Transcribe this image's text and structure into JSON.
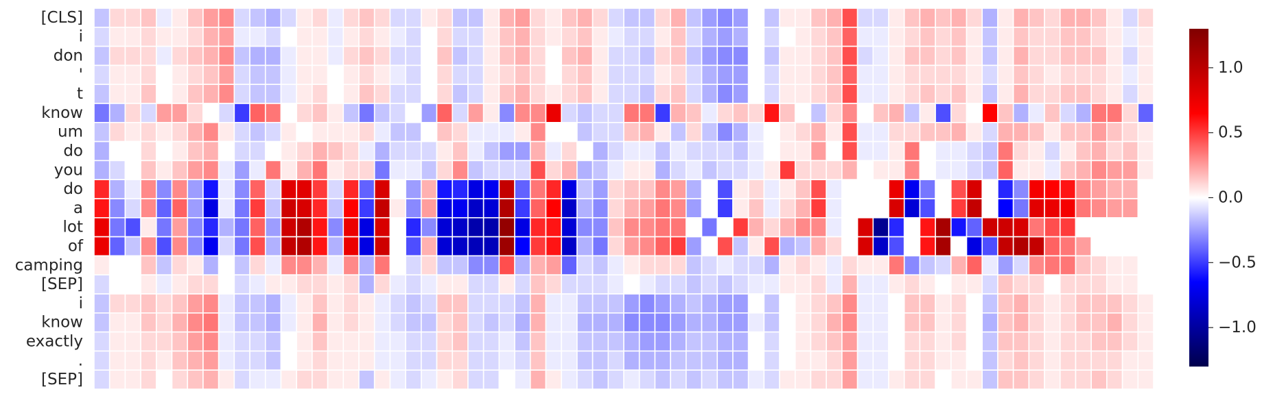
{
  "chart_data": {
    "type": "heatmap",
    "row_labels": [
      "[CLS]",
      "i",
      "don",
      "'",
      "t",
      "know",
      "um",
      "do",
      "you",
      "do",
      "a",
      "lot",
      "of",
      "camping",
      "[SEP]",
      "i",
      "know",
      "exactly",
      ".",
      "[SEP]"
    ],
    "n_columns": 68,
    "colorbar": {
      "min": -1.3,
      "max": 1.3,
      "ticks": [
        -1.0,
        -0.5,
        0.0,
        0.5,
        1.0
      ],
      "tick_labels": [
        "−1.0",
        "−0.5",
        "0.0",
        "0.5",
        "1.0"
      ],
      "colormap": "seismic"
    },
    "values": [
      [
        -0.15,
        0.1,
        0.1,
        0.15,
        -0.05,
        0.05,
        0.15,
        0.25,
        0.3,
        -0.1,
        -0.15,
        -0.2,
        -0.1,
        0.05,
        0.1,
        -0.05,
        0.1,
        0.15,
        0.1,
        -0.1,
        -0.1,
        0.05,
        0.1,
        -0.15,
        -0.15,
        0.05,
        0.2,
        0.25,
        0.1,
        0.05,
        0.15,
        0.2,
        0.1,
        -0.1,
        -0.15,
        -0.15,
        0.1,
        0.2,
        -0.15,
        -0.25,
        -0.3,
        -0.25,
        0.0,
        -0.15,
        0.05,
        0.05,
        0.15,
        0.2,
        0.45,
        -0.1,
        -0.1,
        0.05,
        0.15,
        0.2,
        0.15,
        0.2,
        0.1,
        -0.2,
        0.05,
        0.2,
        0.15,
        0.1,
        0.2,
        0.2,
        0.15,
        0.05,
        -0.1,
        0.1
      ],
      [
        -0.1,
        0.05,
        0.05,
        0.1,
        0.05,
        0.05,
        0.1,
        0.2,
        0.25,
        -0.05,
        -0.05,
        -0.1,
        0.0,
        0.05,
        0.05,
        -0.05,
        0.05,
        0.1,
        0.05,
        -0.05,
        -0.1,
        0.0,
        0.1,
        -0.1,
        -0.1,
        0.05,
        0.15,
        0.2,
        0.1,
        0.05,
        0.1,
        0.15,
        0.05,
        -0.05,
        -0.1,
        -0.1,
        0.05,
        0.15,
        -0.1,
        -0.2,
        -0.25,
        -0.2,
        0.0,
        -0.1,
        0.0,
        0.05,
        0.1,
        0.15,
        0.4,
        -0.05,
        -0.05,
        0.05,
        0.1,
        0.15,
        0.1,
        0.15,
        0.05,
        -0.15,
        0.05,
        0.15,
        0.1,
        0.1,
        0.15,
        0.15,
        0.1,
        0.05,
        -0.05,
        0.05
      ],
      [
        -0.15,
        0.1,
        0.1,
        0.1,
        -0.05,
        0.1,
        0.15,
        0.2,
        0.3,
        -0.15,
        -0.2,
        -0.2,
        -0.05,
        0.05,
        0.05,
        -0.05,
        0.1,
        0.15,
        0.1,
        -0.1,
        -0.1,
        0.0,
        0.15,
        -0.15,
        -0.1,
        0.05,
        0.15,
        0.2,
        0.1,
        0.0,
        0.15,
        0.2,
        0.05,
        -0.1,
        -0.1,
        -0.15,
        0.1,
        0.15,
        -0.15,
        -0.25,
        -0.3,
        -0.3,
        0.0,
        -0.15,
        0.05,
        0.05,
        0.1,
        0.15,
        0.45,
        -0.1,
        -0.05,
        0.05,
        0.15,
        0.15,
        0.1,
        0.15,
        0.05,
        -0.15,
        0.05,
        0.2,
        0.1,
        0.1,
        0.15,
        0.15,
        0.15,
        0.05,
        -0.1,
        0.05
      ],
      [
        -0.1,
        0.05,
        0.05,
        0.1,
        0.0,
        0.05,
        0.1,
        0.15,
        0.25,
        -0.1,
        -0.15,
        -0.15,
        -0.05,
        0.05,
        0.05,
        0.0,
        0.05,
        0.1,
        0.05,
        -0.05,
        -0.1,
        0.0,
        0.1,
        -0.1,
        -0.1,
        0.05,
        0.1,
        0.15,
        0.1,
        0.0,
        0.1,
        0.15,
        0.05,
        -0.1,
        -0.1,
        -0.1,
        0.05,
        0.1,
        -0.1,
        -0.2,
        -0.25,
        -0.25,
        0.0,
        -0.1,
        0.05,
        0.05,
        0.1,
        0.15,
        0.4,
        -0.05,
        -0.05,
        0.05,
        0.1,
        0.1,
        0.1,
        0.1,
        0.05,
        -0.1,
        0.05,
        0.15,
        0.1,
        0.05,
        0.1,
        0.1,
        0.1,
        0.05,
        -0.05,
        0.05
      ],
      [
        -0.15,
        0.05,
        0.05,
        0.15,
        0.0,
        0.05,
        0.15,
        0.2,
        0.3,
        -0.1,
        -0.15,
        -0.15,
        -0.05,
        0.05,
        0.1,
        0.0,
        0.05,
        0.15,
        0.1,
        -0.1,
        -0.1,
        0.0,
        0.1,
        -0.15,
        -0.1,
        0.05,
        0.15,
        0.2,
        0.1,
        0.05,
        0.1,
        0.15,
        0.05,
        -0.1,
        -0.1,
        -0.15,
        0.1,
        0.15,
        -0.1,
        -0.2,
        -0.3,
        -0.25,
        0.0,
        -0.1,
        0.05,
        0.05,
        0.1,
        0.15,
        0.45,
        -0.05,
        -0.05,
        0.05,
        0.1,
        0.15,
        0.1,
        0.15,
        0.05,
        -0.15,
        0.05,
        0.2,
        0.1,
        0.1,
        0.15,
        0.15,
        0.1,
        0.05,
        -0.1,
        0.05
      ],
      [
        -0.35,
        -0.2,
        0.1,
        -0.1,
        0.25,
        0.25,
        0.1,
        0.0,
        -0.1,
        -0.5,
        0.4,
        0.35,
        0.0,
        0.1,
        0.15,
        0.05,
        -0.15,
        -0.35,
        -0.15,
        -0.1,
        0.0,
        -0.25,
        0.4,
        -0.1,
        0.25,
        0.05,
        -0.3,
        0.3,
        0.3,
        0.75,
        -0.1,
        -0.15,
        -0.1,
        -0.1,
        0.35,
        0.35,
        -0.5,
        0.2,
        0.15,
        -0.05,
        0.1,
        0.15,
        0.1,
        0.6,
        0.15,
        0.0,
        -0.15,
        0.1,
        0.3,
        0.0,
        0.15,
        0.2,
        -0.15,
        0.05,
        -0.45,
        0.1,
        0.0,
        0.65,
        0.15,
        -0.2,
        -0.05,
        0.15,
        -0.1,
        -0.2,
        0.35,
        0.35,
        0.1,
        -0.4
      ],
      [
        -0.15,
        0.1,
        0.05,
        0.1,
        0.05,
        0.1,
        0.2,
        0.3,
        0.05,
        -0.1,
        -0.15,
        -0.1,
        0.05,
        0.0,
        0.05,
        0.05,
        0.05,
        0.1,
        -0.05,
        -0.15,
        -0.15,
        0.0,
        0.15,
        0.1,
        -0.05,
        -0.05,
        -0.05,
        0.05,
        0.3,
        0.0,
        0.0,
        -0.15,
        -0.1,
        -0.1,
        0.15,
        0.2,
        0.05,
        -0.15,
        0.1,
        -0.15,
        -0.3,
        -0.2,
        -0.05,
        0.0,
        0.05,
        0.1,
        0.2,
        0.05,
        0.45,
        -0.05,
        -0.05,
        0.1,
        0.1,
        0.15,
        0.15,
        0.2,
        0.05,
        -0.1,
        0.2,
        0.2,
        0.15,
        0.05,
        0.15,
        0.15,
        0.25,
        0.15,
        0.1,
        0.05
      ],
      [
        -0.2,
        0.0,
        0.0,
        0.1,
        0.0,
        0.05,
        0.15,
        0.2,
        0.0,
        -0.1,
        -0.1,
        0.0,
        0.05,
        0.1,
        0.2,
        0.15,
        0.1,
        -0.05,
        -0.2,
        -0.1,
        -0.1,
        -0.1,
        0.05,
        0.15,
        -0.05,
        -0.15,
        -0.25,
        -0.25,
        0.2,
        -0.05,
        0.1,
        0.0,
        -0.2,
        -0.1,
        -0.05,
        -0.05,
        -0.15,
        -0.05,
        -0.1,
        -0.1,
        -0.1,
        -0.15,
        -0.05,
        0.0,
        0.05,
        0.05,
        0.25,
        0.0,
        0.45,
        -0.05,
        -0.05,
        0.05,
        0.35,
        0.0,
        -0.05,
        -0.05,
        -0.1,
        -0.15,
        0.35,
        0.1,
        0.05,
        -0.1,
        0.05,
        0.15,
        0.2,
        0.1,
        0.15,
        0.05
      ],
      [
        -0.2,
        -0.1,
        0.0,
        0.15,
        0.05,
        0.15,
        0.25,
        0.3,
        -0.05,
        -0.25,
        -0.05,
        0.35,
        0.05,
        0.2,
        0.35,
        0.05,
        0.1,
        0.1,
        -0.35,
        -0.05,
        -0.05,
        -0.15,
        0.1,
        0.3,
        -0.15,
        -0.1,
        -0.1,
        -0.1,
        0.45,
        0.1,
        0.2,
        -0.2,
        -0.15,
        -0.05,
        0.05,
        0.05,
        -0.2,
        -0.1,
        -0.05,
        -0.15,
        -0.1,
        -0.1,
        -0.05,
        0.05,
        0.5,
        0.1,
        0.1,
        0.1,
        0.2,
        0.0,
        0.05,
        0.05,
        0.3,
        0.0,
        -0.05,
        -0.05,
        -0.1,
        -0.15,
        0.4,
        0.05,
        0.05,
        -0.05,
        0.15,
        0.2,
        0.3,
        0.25,
        0.25,
        0.05
      ],
      [
        0.55,
        -0.2,
        -0.05,
        0.3,
        -0.3,
        0.3,
        -0.25,
        -0.6,
        -0.05,
        -0.3,
        0.4,
        -0.1,
        0.8,
        0.8,
        0.5,
        -0.1,
        0.55,
        -0.4,
        0.85,
        0.0,
        -0.25,
        0.2,
        -0.6,
        -0.55,
        -0.75,
        -0.7,
        0.95,
        -0.4,
        0.35,
        0.55,
        -0.75,
        -0.15,
        -0.25,
        0.1,
        0.15,
        0.15,
        0.3,
        0.25,
        -0.2,
        0.0,
        -0.45,
        0.05,
        0.1,
        -0.05,
        0.05,
        0.15,
        0.45,
        -0.05,
        0.0,
        0.0,
        0.0,
        0.75,
        -0.7,
        -0.35,
        0.0,
        0.45,
        0.85,
        0.0,
        -0.55,
        -0.3,
        0.7,
        0.65,
        0.6,
        0.3,
        0.25,
        0.2,
        0.2,
        0.0
      ],
      [
        0.6,
        -0.3,
        -0.1,
        0.3,
        -0.4,
        0.4,
        -0.25,
        -0.75,
        -0.05,
        -0.35,
        0.5,
        -0.15,
        0.9,
        0.85,
        0.55,
        -0.15,
        0.65,
        -0.5,
        0.95,
        0.05,
        -0.3,
        0.25,
        -0.75,
        -0.7,
        -0.85,
        -0.8,
        1.05,
        -0.5,
        0.4,
        0.65,
        -0.85,
        -0.2,
        -0.3,
        0.1,
        0.2,
        0.25,
        0.35,
        0.3,
        -0.25,
        0.0,
        -0.5,
        0.05,
        0.15,
        -0.05,
        0.1,
        0.2,
        0.5,
        -0.05,
        0.0,
        0.0,
        0.0,
        0.85,
        -0.8,
        -0.45,
        0.0,
        0.5,
        0.95,
        0.0,
        -0.65,
        -0.35,
        0.8,
        0.75,
        0.7,
        0.35,
        0.3,
        0.25,
        0.25,
        0.0
      ],
      [
        0.75,
        -0.35,
        -0.45,
        0.05,
        -0.35,
        0.25,
        -0.3,
        -0.55,
        -0.2,
        -0.35,
        0.4,
        -0.25,
        0.9,
        1.05,
        0.6,
        -0.3,
        0.75,
        -0.75,
        0.85,
        0.0,
        -0.55,
        -0.3,
        -0.8,
        -0.85,
        -0.95,
        -0.95,
        1.2,
        -0.75,
        0.55,
        0.6,
        -0.8,
        -0.3,
        -0.3,
        0.15,
        0.3,
        0.3,
        0.35,
        0.35,
        0.0,
        -0.35,
        0.0,
        0.5,
        0.2,
        0.1,
        0.2,
        0.3,
        0.3,
        -0.05,
        0.0,
        0.85,
        -1.05,
        -0.55,
        0.0,
        0.6,
        1.1,
        -0.6,
        -0.4,
        0.9,
        0.9,
        0.85,
        0.35,
        0.45,
        0.5,
        0.0,
        0.0,
        0.0,
        0.0,
        0.0
      ],
      [
        0.75,
        -0.4,
        -0.15,
        0.3,
        -0.45,
        0.3,
        -0.3,
        -0.7,
        -0.1,
        -0.35,
        0.45,
        -0.2,
        0.95,
        1.05,
        0.6,
        -0.2,
        0.75,
        -0.75,
        0.9,
        0.0,
        -0.45,
        0.2,
        -0.8,
        -0.85,
        -0.9,
        -0.9,
        1.15,
        -0.65,
        0.5,
        0.6,
        -0.85,
        -0.2,
        -0.35,
        0.1,
        0.25,
        0.3,
        0.4,
        0.5,
        -0.25,
        0.0,
        0.45,
        -0.15,
        0.05,
        0.45,
        -0.2,
        -0.15,
        0.2,
        0.1,
        0.0,
        0.85,
        -0.85,
        -0.45,
        0.0,
        0.6,
        1.1,
        0.0,
        -0.75,
        -0.45,
        0.95,
        1.05,
        0.95,
        0.4,
        0.35,
        0.25,
        0.0,
        0.0,
        0.0,
        0.0
      ],
      [
        0.05,
        0.0,
        0.0,
        0.15,
        -0.15,
        0.1,
        0.05,
        -0.2,
        0.0,
        -0.15,
        0.1,
        -0.05,
        0.3,
        0.3,
        0.2,
        -0.05,
        0.3,
        -0.2,
        0.35,
        0.0,
        -0.1,
        0.1,
        -0.15,
        -0.15,
        -0.3,
        -0.3,
        0.45,
        -0.2,
        0.2,
        0.25,
        -0.4,
        -0.1,
        -0.15,
        -0.05,
        0.05,
        0.1,
        0.1,
        0.1,
        -0.15,
        -0.1,
        -0.05,
        -0.1,
        -0.1,
        -0.2,
        0.05,
        0.1,
        0.05,
        -0.05,
        0.1,
        0.05,
        0.05,
        0.35,
        -0.3,
        -0.15,
        -0.1,
        0.2,
        0.4,
        -0.05,
        -0.25,
        -0.1,
        0.3,
        0.35,
        0.35,
        0.15,
        0.1,
        0.05,
        0.05,
        0.0
      ],
      [
        -0.1,
        0.0,
        0.0,
        0.05,
        -0.05,
        0.05,
        0.1,
        0.1,
        0.0,
        -0.1,
        -0.05,
        0.05,
        0.05,
        0.1,
        0.1,
        0.05,
        0.1,
        -0.2,
        0.1,
        -0.05,
        -0.1,
        -0.05,
        0.05,
        0.05,
        -0.1,
        -0.1,
        0.05,
        -0.1,
        0.15,
        0.1,
        -0.1,
        -0.1,
        -0.1,
        -0.05,
        0.0,
        -0.05,
        -0.1,
        -0.1,
        -0.15,
        -0.1,
        -0.15,
        -0.1,
        -0.05,
        -0.05,
        0.05,
        0.05,
        0.1,
        -0.05,
        0.2,
        -0.05,
        -0.05,
        0.05,
        0.1,
        0.05,
        0.0,
        0.05,
        0.05,
        -0.1,
        0.15,
        0.1,
        0.1,
        0.0,
        0.1,
        0.1,
        0.1,
        0.05,
        0.05,
        0.0
      ],
      [
        -0.15,
        0.1,
        0.1,
        0.15,
        0.1,
        0.15,
        0.25,
        0.3,
        -0.05,
        -0.15,
        -0.15,
        -0.2,
        -0.05,
        0.05,
        0.15,
        0.05,
        0.1,
        0.05,
        -0.05,
        -0.1,
        -0.15,
        -0.1,
        0.15,
        0.15,
        -0.1,
        -0.1,
        -0.1,
        -0.15,
        0.2,
        -0.05,
        -0.05,
        -0.15,
        -0.15,
        -0.15,
        -0.25,
        -0.3,
        -0.25,
        -0.2,
        -0.15,
        -0.2,
        -0.25,
        -0.25,
        0.0,
        -0.15,
        0.0,
        0.05,
        0.1,
        0.15,
        0.3,
        -0.05,
        -0.05,
        0.0,
        0.15,
        0.15,
        0.05,
        0.1,
        0.0,
        -0.15,
        0.15,
        0.2,
        0.1,
        0.05,
        0.1,
        0.15,
        0.15,
        0.15,
        0.1,
        0.05
      ],
      [
        -0.15,
        0.05,
        0.05,
        0.15,
        0.1,
        0.2,
        0.3,
        0.35,
        -0.05,
        -0.15,
        -0.15,
        -0.2,
        -0.05,
        0.05,
        0.2,
        0.05,
        0.1,
        0.05,
        -0.05,
        -0.1,
        -0.15,
        -0.15,
        0.1,
        0.15,
        -0.1,
        -0.15,
        -0.1,
        -0.2,
        0.2,
        -0.05,
        -0.05,
        -0.2,
        -0.2,
        -0.2,
        -0.3,
        -0.3,
        -0.3,
        -0.25,
        -0.2,
        -0.2,
        -0.25,
        -0.25,
        -0.05,
        -0.15,
        0.0,
        0.05,
        0.1,
        0.2,
        0.3,
        -0.05,
        -0.05,
        0.0,
        0.15,
        0.15,
        0.05,
        0.1,
        0.0,
        -0.2,
        0.15,
        0.2,
        0.1,
        0.05,
        0.1,
        0.15,
        0.15,
        0.2,
        0.1,
        0.05
      ],
      [
        -0.1,
        0.05,
        0.05,
        0.1,
        0.1,
        0.15,
        0.25,
        0.3,
        -0.05,
        -0.1,
        -0.1,
        -0.15,
        0.0,
        0.05,
        0.15,
        0.05,
        0.05,
        0.05,
        -0.05,
        -0.05,
        -0.1,
        -0.1,
        0.1,
        0.15,
        -0.1,
        -0.1,
        -0.05,
        -0.15,
        0.15,
        -0.05,
        -0.05,
        -0.15,
        -0.15,
        -0.15,
        -0.2,
        -0.25,
        -0.25,
        -0.2,
        -0.15,
        -0.15,
        -0.2,
        -0.2,
        0.0,
        -0.1,
        0.0,
        0.05,
        0.1,
        0.15,
        0.25,
        -0.05,
        -0.05,
        0.0,
        0.1,
        0.1,
        0.05,
        0.1,
        0.0,
        -0.15,
        0.15,
        0.15,
        0.1,
        0.05,
        0.1,
        0.1,
        0.15,
        0.15,
        0.1,
        0.05
      ],
      [
        -0.1,
        0.05,
        0.05,
        0.1,
        0.05,
        0.15,
        0.2,
        0.25,
        -0.05,
        -0.1,
        -0.1,
        -0.15,
        0.0,
        0.05,
        0.1,
        0.05,
        0.05,
        0.05,
        -0.05,
        -0.05,
        -0.1,
        -0.1,
        0.1,
        0.1,
        -0.1,
        -0.1,
        -0.05,
        -0.1,
        0.15,
        -0.05,
        -0.05,
        -0.15,
        -0.15,
        -0.1,
        -0.2,
        -0.2,
        -0.2,
        -0.15,
        -0.15,
        -0.15,
        -0.2,
        -0.2,
        0.0,
        -0.1,
        0.0,
        0.05,
        0.05,
        0.1,
        0.25,
        -0.05,
        -0.05,
        0.0,
        0.1,
        0.1,
        0.05,
        0.05,
        0.0,
        -0.15,
        0.1,
        0.15,
        0.1,
        0.05,
        0.1,
        0.1,
        0.1,
        0.1,
        0.05,
        0.05
      ],
      [
        -0.1,
        0.05,
        0.05,
        0.1,
        0.0,
        0.1,
        0.15,
        0.2,
        0.05,
        -0.1,
        -0.05,
        -0.05,
        0.05,
        0.1,
        0.1,
        0.05,
        0.05,
        -0.15,
        0.05,
        -0.05,
        -0.1,
        -0.05,
        0.05,
        0.1,
        -0.1,
        -0.1,
        0.0,
        -0.05,
        0.2,
        0.05,
        -0.05,
        -0.1,
        -0.15,
        -0.1,
        -0.05,
        -0.1,
        -0.15,
        -0.1,
        -0.15,
        -0.1,
        -0.15,
        -0.15,
        -0.05,
        -0.1,
        0.05,
        0.05,
        0.1,
        0.1,
        0.25,
        -0.05,
        -0.05,
        0.05,
        0.1,
        0.1,
        0.0,
        0.05,
        0.05,
        -0.15,
        0.15,
        0.15,
        0.1,
        0.05,
        0.1,
        0.1,
        0.15,
        0.1,
        0.05,
        0.05
      ]
    ]
  }
}
